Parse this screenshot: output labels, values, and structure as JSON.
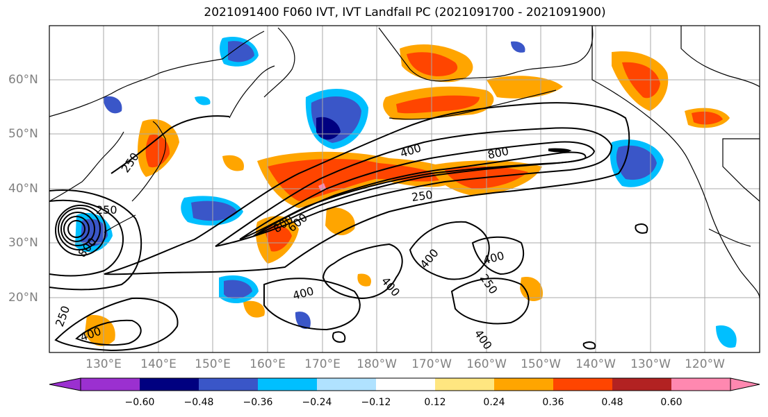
{
  "title": "2021091400 F060 IVT, IVT Landfall PC (2021091700 - 2021091900)",
  "lat_labels": [
    {
      "text": "60°N"
    },
    {
      "text": "50°N"
    },
    {
      "text": "40°N"
    },
    {
      "text": "30°N"
    },
    {
      "text": "20°N"
    }
  ],
  "lon_labels": [
    {
      "text": "130°E"
    },
    {
      "text": "140°E"
    },
    {
      "text": "150°E"
    },
    {
      "text": "160°E"
    },
    {
      "text": "170°E"
    },
    {
      "text": "180°W"
    },
    {
      "text": "170°W"
    },
    {
      "text": "160°W"
    },
    {
      "text": "150°W"
    },
    {
      "text": "140°W"
    },
    {
      "text": "130°W"
    },
    {
      "text": "120°W"
    }
  ],
  "colorbar": {
    "colors": [
      "#9b30d0",
      "#000080",
      "#3a56c8",
      "#00bfff",
      "#b0e2ff",
      "#ffffff",
      "#ffe680",
      "#ffa500",
      "#ff4500",
      "#b22222",
      "#ff88b0"
    ],
    "ticks": [
      "−0.60",
      "−0.48",
      "−0.36",
      "−0.24",
      "−0.12",
      "0.12",
      "0.24",
      "0.36",
      "0.48",
      "0.60"
    ]
  },
  "contour_labels": [
    {
      "text": "400"
    },
    {
      "text": "800"
    },
    {
      "text": "250"
    },
    {
      "text": "400"
    },
    {
      "text": "400"
    },
    {
      "text": "400"
    },
    {
      "text": "400"
    },
    {
      "text": "250"
    },
    {
      "text": "400"
    },
    {
      "text": "800"
    },
    {
      "text": "600"
    },
    {
      "text": "250"
    },
    {
      "text": "250"
    },
    {
      "text": "800"
    },
    {
      "text": "400"
    },
    {
      "text": "250"
    }
  ]
}
